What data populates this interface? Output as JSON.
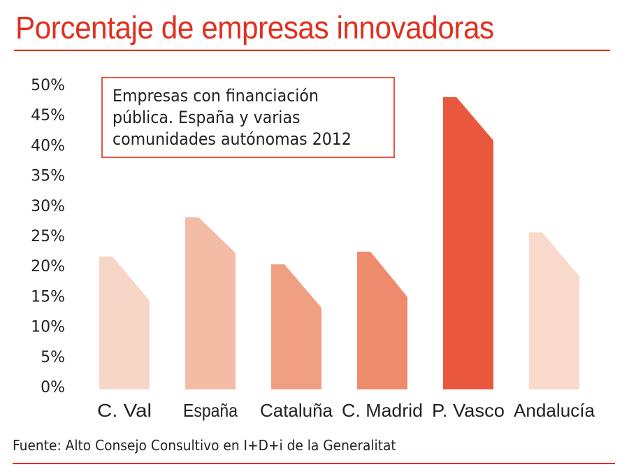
{
  "page": {
    "title": "Porcentaje de empresas innovadoras",
    "source": "Fuente: Alto Consejo Consultivo en I+D+i de la Generalitat"
  },
  "chart_data": {
    "type": "bar",
    "title": "Porcentaje de empresas innovadoras",
    "subtitle": "Empresas con financiación pública. España y varias comunidades autónomas 2012",
    "subtitle_lines": [
      "Empresas con financiación",
      "pública. España y varias",
      "comunidades autónomas 2012"
    ],
    "xlabel": "",
    "ylabel": "",
    "ylim": [
      0,
      50
    ],
    "yticks": [
      0,
      5,
      10,
      15,
      20,
      25,
      30,
      35,
      40,
      45,
      50
    ],
    "ytick_labels": [
      "0%",
      "5%",
      "10%",
      "15%",
      "20%",
      "25%",
      "30%",
      "35%",
      "40%",
      "45%",
      "50%"
    ],
    "grid": false,
    "legend": "none",
    "categories": [
      "C. Val",
      "España",
      "Cataluña",
      "C. Madrid",
      "P. Vasco",
      "Andalucía"
    ],
    "values": [
      22.0,
      28.5,
      20.7,
      22.8,
      48.4,
      26.0
    ],
    "values_right_edge": [
      14.7,
      22.6,
      13.5,
      15.3,
      41.2,
      18.7
    ],
    "colors": [
      "#f7d6c8",
      "#f4bca5",
      "#f09f82",
      "#ee8b6d",
      "#e9573d",
      "#f9d9cb"
    ],
    "source": "Fuente: Alto Consejo Consultivo en I+D+i de la Generalitat"
  },
  "theme": {
    "accent": "#e0301e",
    "box_border": "#e8553f",
    "text": "#231f20"
  }
}
